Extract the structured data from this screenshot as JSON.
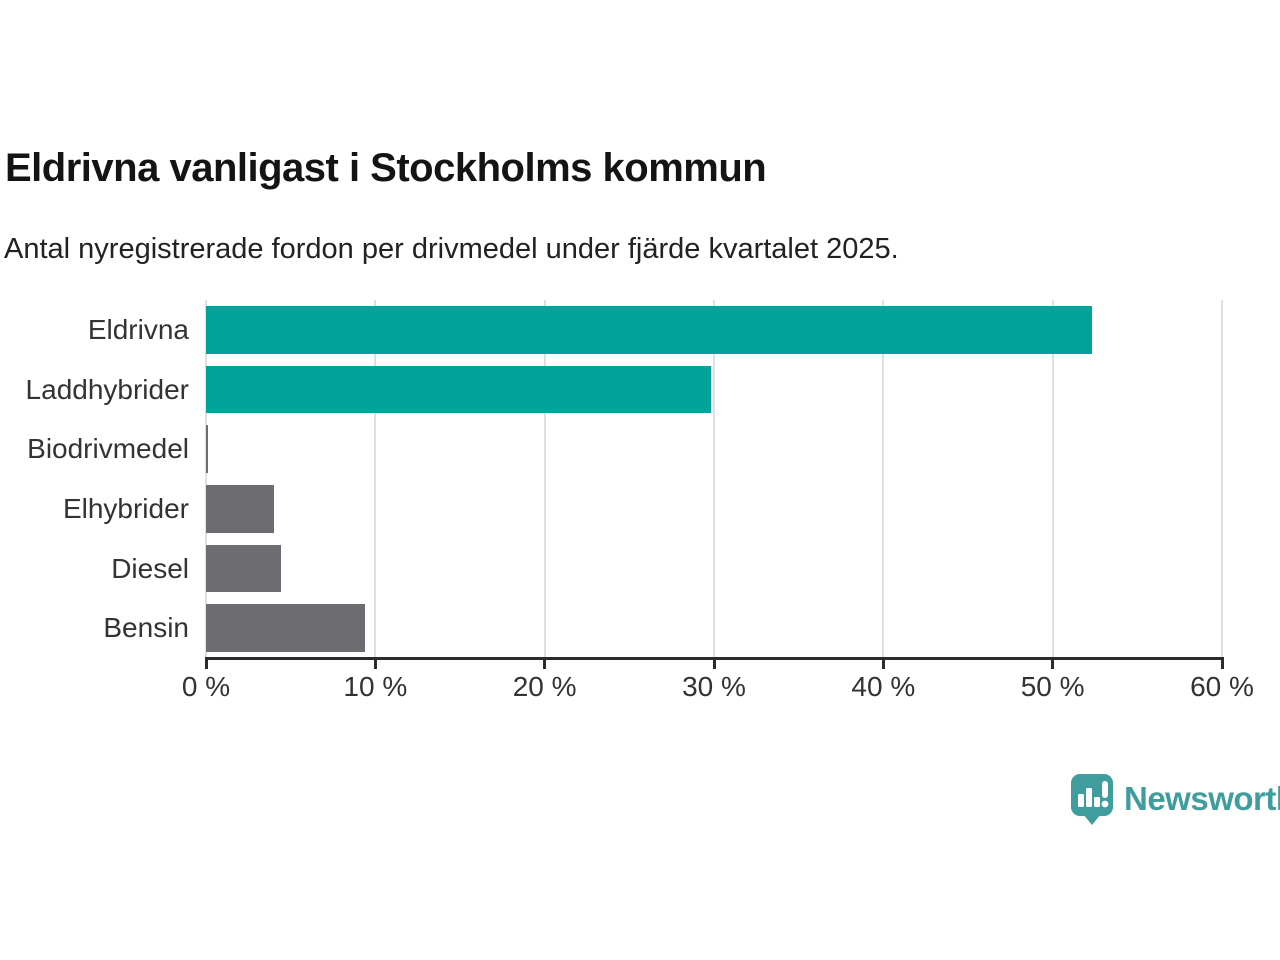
{
  "chart_data": {
    "type": "bar",
    "orientation": "horizontal",
    "title": "Eldrivna vanligast i Stockholms kommun",
    "subtitle": "Antal nyregistrerade fordon per drivmedel under fjärde kvartalet 2025.",
    "categories": [
      "Eldrivna",
      "Laddhybrider",
      "Biodrivmedel",
      "Elhybrider",
      "Diesel",
      "Bensin"
    ],
    "values": [
      52.3,
      29.8,
      0.1,
      4.0,
      4.4,
      9.4
    ],
    "bar_colors": [
      "#00a29a",
      "#00a29a",
      "#6c6c71",
      "#6c6c71",
      "#6c6c71",
      "#6c6c71"
    ],
    "highlight_color": "#00a29a",
    "default_color": "#6c6c71",
    "xlabel": "",
    "ylabel": "",
    "xlim": [
      0,
      60
    ],
    "xticks": [
      0,
      10,
      20,
      30,
      40,
      50,
      60
    ],
    "xtick_labels": [
      "0 %",
      "10 %",
      "20 %",
      "30 %",
      "40 %",
      "50 %",
      "60 %"
    ],
    "grid": true,
    "legend": false
  },
  "colors": {
    "gridline": "#e0e0e0",
    "axis": "#2b2b2b",
    "title_text": "#141414",
    "subtitle_text": "#222222",
    "label_text": "#333333"
  },
  "branding": {
    "logo_text": "Newsworthy",
    "logo_color": "#3f9d9e"
  }
}
